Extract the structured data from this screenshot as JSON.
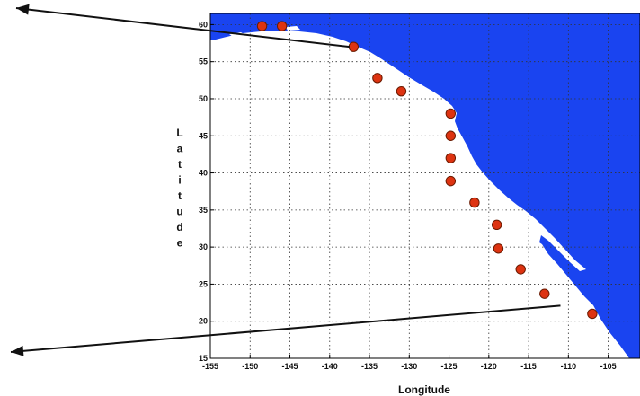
{
  "figure": {
    "xlabel": "Longitude",
    "ylabel": "Latitude",
    "x_ticks": [
      "-155",
      "-150",
      "-145",
      "-140",
      "-135",
      "-130",
      "-125",
      "-120",
      "-115",
      "-110",
      "-105"
    ],
    "y_ticks": [
      "60",
      "55",
      "50",
      "45",
      "40",
      "35",
      "30",
      "25",
      "20",
      "15"
    ],
    "xlim": [
      -155,
      -101
    ],
    "ylim": [
      15,
      61.5
    ]
  },
  "chart_data": {
    "type": "scatter",
    "xlabel": "Longitude",
    "ylabel": "Latitude",
    "xlim": [
      -155,
      -101
    ],
    "ylim": [
      15,
      61.5
    ],
    "grid": true,
    "points": [
      {
        "lon": -148.5,
        "lat": 59.8
      },
      {
        "lon": -146.0,
        "lat": 59.8
      },
      {
        "lon": -137.0,
        "lat": 57.0
      },
      {
        "lon": -134.0,
        "lat": 52.8
      },
      {
        "lon": -131.0,
        "lat": 51.0
      },
      {
        "lon": -124.8,
        "lat": 48.0
      },
      {
        "lon": -124.8,
        "lat": 45.0
      },
      {
        "lon": -124.8,
        "lat": 42.0
      },
      {
        "lon": -124.8,
        "lat": 38.9
      },
      {
        "lon": -121.8,
        "lat": 36.0
      },
      {
        "lon": -119.0,
        "lat": 33.0
      },
      {
        "lon": -118.8,
        "lat": 29.8
      },
      {
        "lon": -116.0,
        "lat": 27.0
      },
      {
        "lon": -113.0,
        "lat": 23.7
      },
      {
        "lon": -107.0,
        "lat": 21.0
      }
    ],
    "arrows": [
      {
        "from": [
          -137.5,
          57.0
        ],
        "to": "upper-left"
      },
      {
        "from": [
          -111.0,
          22.1
        ],
        "to": "lower-left"
      }
    ]
  },
  "colors": {
    "ocean_land_fill": "#1a44f0",
    "point_fill": "#dd3311",
    "point_stroke": "#6a1a00",
    "arrow": "#111111"
  }
}
